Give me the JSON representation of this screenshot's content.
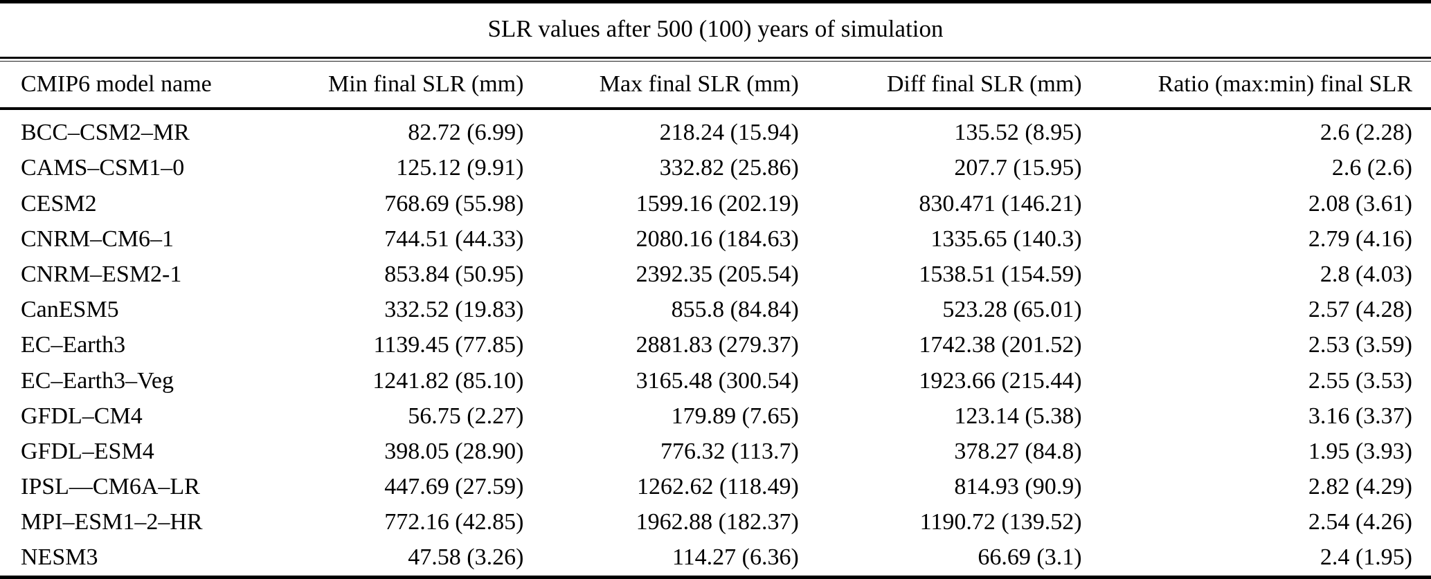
{
  "table": {
    "title": "SLR values after 500 (100) years of simulation",
    "columns": [
      "CMIP6 model name",
      "Min final SLR (mm)",
      "Max final SLR (mm)",
      "Diff final SLR (mm)",
      "Ratio (max:min) final SLR"
    ],
    "rows": [
      [
        "BCC–CSM2–MR",
        "82.72 (6.99)",
        "218.24 (15.94)",
        "135.52 (8.95)",
        "2.6 (2.28)"
      ],
      [
        "CAMS–CSM1–0",
        "125.12 (9.91)",
        "332.82 (25.86)",
        "207.7 (15.95)",
        "2.6 (2.6)"
      ],
      [
        "CESM2",
        "768.69 (55.98)",
        "1599.16 (202.19)",
        "830.471 (146.21)",
        "2.08 (3.61)"
      ],
      [
        "CNRM–CM6–1",
        "744.51 (44.33)",
        "2080.16 (184.63)",
        "1335.65 (140.3)",
        "2.79 (4.16)"
      ],
      [
        "CNRM–ESM2-1",
        "853.84 (50.95)",
        "2392.35 (205.54)",
        "1538.51 (154.59)",
        "2.8 (4.03)"
      ],
      [
        "CanESM5",
        "332.52 (19.83)",
        "855.8 (84.84)",
        "523.28 (65.01)",
        "2.57 (4.28)"
      ],
      [
        "EC–Earth3",
        "1139.45 (77.85)",
        "2881.83 (279.37)",
        "1742.38 (201.52)",
        "2.53 (3.59)"
      ],
      [
        "EC–Earth3–Veg",
        "1241.82 (85.10)",
        "3165.48 (300.54)",
        "1923.66 (215.44)",
        "2.55 (3.53)"
      ],
      [
        "GFDL–CM4",
        "56.75 (2.27)",
        "179.89 (7.65)",
        "123.14 (5.38)",
        "3.16 (3.37)"
      ],
      [
        "GFDL–ESM4",
        "398.05 (28.90)",
        "776.32 (113.7)",
        "378.27 (84.8)",
        "1.95 (3.93)"
      ],
      [
        "IPSL—CM6A–LR",
        "447.69 (27.59)",
        "1262.62 (118.49)",
        "814.93 (90.9)",
        "2.82 (4.29)"
      ],
      [
        "MPI–ESM1–2–HR",
        "772.16 (42.85)",
        "1962.88 (182.37)",
        "1190.72 (139.52)",
        "2.54 (4.26)"
      ],
      [
        "NESM3",
        "47.58 (3.26)",
        "114.27 (6.36)",
        "66.69 (3.1)",
        "2.4 (1.95)"
      ]
    ]
  }
}
